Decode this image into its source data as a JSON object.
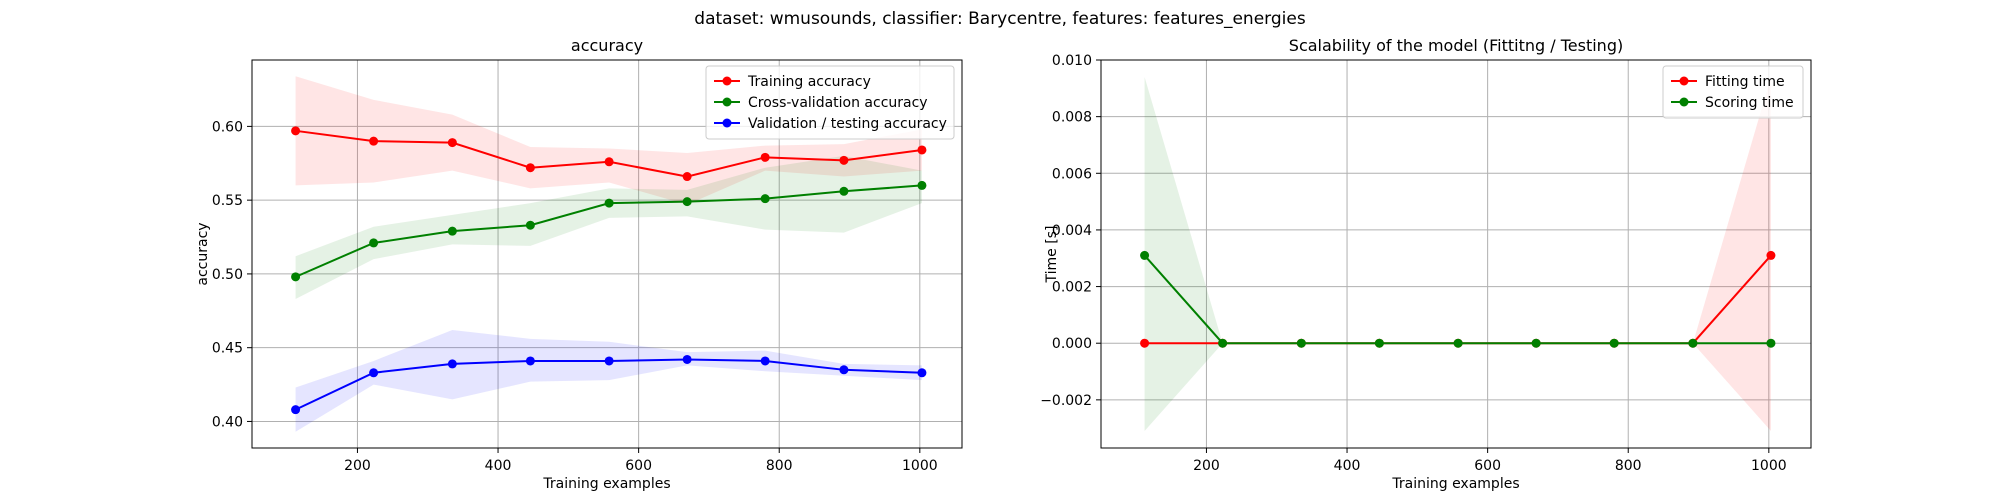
{
  "suptitle": "dataset: wmusounds, classifier: Barycentre, features: features_energies",
  "chart_data": [
    {
      "type": "line",
      "title": "accuracy",
      "xlabel": "Training examples",
      "ylabel": "accuracy",
      "xlim": [
        50,
        1060
      ],
      "ylim": [
        0.382,
        0.645
      ],
      "xticks": [
        200,
        400,
        600,
        800,
        1000
      ],
      "yticks": [
        0.4,
        0.45,
        0.5,
        0.55,
        0.6
      ],
      "ytick_labels": [
        "0.40",
        "0.45",
        "0.50",
        "0.55",
        "0.60"
      ],
      "grid": true,
      "legend_position": "top-right",
      "x": [
        112,
        223,
        335,
        446,
        558,
        669,
        780,
        892,
        1003
      ],
      "series": [
        {
          "name": "Training accuracy",
          "color": "#ff0000",
          "values": [
            0.597,
            0.59,
            0.589,
            0.572,
            0.576,
            0.566,
            0.579,
            0.577,
            0.584
          ],
          "band_low": [
            0.56,
            0.562,
            0.57,
            0.558,
            0.562,
            0.547,
            0.57,
            0.566,
            0.57
          ],
          "band_high": [
            0.634,
            0.618,
            0.608,
            0.586,
            0.585,
            0.582,
            0.587,
            0.588,
            0.598
          ]
        },
        {
          "name": "Cross-validation accuracy",
          "color": "#008000",
          "values": [
            0.498,
            0.521,
            0.529,
            0.533,
            0.548,
            0.549,
            0.551,
            0.556,
            0.56
          ],
          "band_low": [
            0.483,
            0.51,
            0.52,
            0.519,
            0.538,
            0.539,
            0.53,
            0.528,
            0.548
          ],
          "band_high": [
            0.512,
            0.532,
            0.54,
            0.548,
            0.558,
            0.557,
            0.572,
            0.58,
            0.57
          ]
        },
        {
          "name": "Validation / testing accuracy",
          "color": "#0000ff",
          "values": [
            0.408,
            0.433,
            0.439,
            0.441,
            0.441,
            0.442,
            0.441,
            0.435,
            0.433
          ],
          "band_low": [
            0.393,
            0.425,
            0.415,
            0.427,
            0.428,
            0.438,
            0.434,
            0.431,
            0.428
          ],
          "band_high": [
            0.423,
            0.441,
            0.462,
            0.456,
            0.454,
            0.447,
            0.448,
            0.439,
            0.438
          ]
        }
      ]
    },
    {
      "type": "line",
      "title": "Scalability of the model (Fittitng / Testing)",
      "xlabel": "Training examples",
      "ylabel": "Time [s]",
      "xlim": [
        50,
        1060
      ],
      "ylim": [
        -0.0037,
        0.01
      ],
      "xticks": [
        200,
        400,
        600,
        800,
        1000
      ],
      "yticks": [
        -0.002,
        0.0,
        0.002,
        0.004,
        0.006,
        0.008,
        0.01
      ],
      "ytick_labels": [
        "−0.002",
        "0.000",
        "0.002",
        "0.004",
        "0.006",
        "0.008",
        "0.010"
      ],
      "grid": true,
      "legend_position": "top-right",
      "x": [
        112,
        223,
        335,
        446,
        558,
        669,
        780,
        892,
        1003
      ],
      "series": [
        {
          "name": "Fitting time",
          "color": "#ff0000",
          "values": [
            0,
            0,
            0,
            0,
            0,
            0,
            0,
            0,
            0.0031
          ],
          "band_low": [
            0,
            0,
            0,
            0,
            0,
            0,
            0,
            0,
            -0.0031
          ],
          "band_high": [
            0,
            0,
            0,
            0,
            0,
            0,
            0,
            0,
            0.0094
          ]
        },
        {
          "name": "Scoring time",
          "color": "#008000",
          "values": [
            0.0031,
            0,
            0,
            0,
            0,
            0,
            0,
            0,
            0
          ],
          "band_low": [
            -0.0031,
            0,
            0,
            0,
            0,
            0,
            0,
            0,
            0
          ],
          "band_high": [
            0.0094,
            0,
            0,
            0,
            0,
            0,
            0,
            0,
            0
          ]
        }
      ]
    }
  ]
}
